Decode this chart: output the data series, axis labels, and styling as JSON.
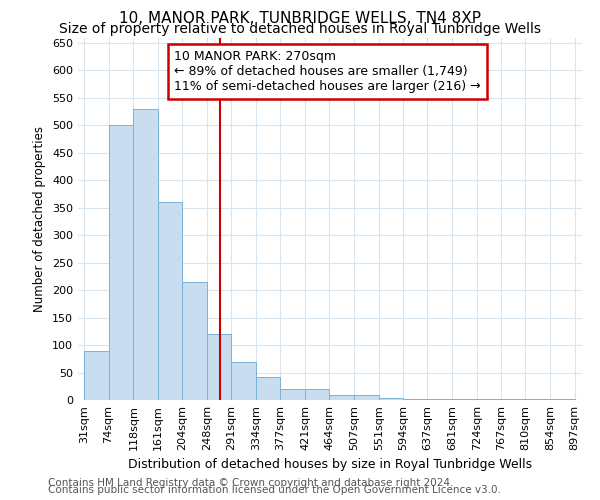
{
  "title": "10, MANOR PARK, TUNBRIDGE WELLS, TN4 8XP",
  "subtitle": "Size of property relative to detached houses in Royal Tunbridge Wells",
  "xlabel": "Distribution of detached houses by size in Royal Tunbridge Wells",
  "ylabel": "Number of detached properties",
  "annotation_line1": "10 MANOR PARK: 270sqm",
  "annotation_line2": "← 89% of detached houses are smaller (1,749)",
  "annotation_line3": "11% of semi-detached houses are larger (216) →",
  "footnote1": "Contains HM Land Registry data © Crown copyright and database right 2024.",
  "footnote2": "Contains public sector information licensed under the Open Government Licence v3.0.",
  "bar_left_edges": [
    31,
    74,
    118,
    161,
    204,
    248,
    291,
    334,
    377,
    421,
    464,
    507,
    551,
    594,
    637,
    681,
    724,
    767,
    810,
    854
  ],
  "bar_widths": [
    43,
    44,
    43,
    43,
    44,
    43,
    43,
    43,
    44,
    43,
    43,
    44,
    43,
    43,
    44,
    43,
    43,
    43,
    44,
    43
  ],
  "bar_heights": [
    90,
    500,
    530,
    360,
    215,
    120,
    70,
    42,
    20,
    20,
    10,
    10,
    3,
    1,
    1,
    1,
    1,
    1,
    1,
    1
  ],
  "x_tick_labels": [
    "31sqm",
    "74sqm",
    "118sqm",
    "161sqm",
    "204sqm",
    "248sqm",
    "291sqm",
    "334sqm",
    "377sqm",
    "421sqm",
    "464sqm",
    "507sqm",
    "551sqm",
    "594sqm",
    "637sqm",
    "681sqm",
    "724sqm",
    "767sqm",
    "810sqm",
    "854sqm",
    "897sqm"
  ],
  "x_tick_positions": [
    31,
    74,
    118,
    161,
    204,
    248,
    291,
    334,
    377,
    421,
    464,
    507,
    551,
    594,
    637,
    681,
    724,
    767,
    810,
    854,
    897
  ],
  "ylim": [
    0,
    660
  ],
  "xlim": [
    20,
    910
  ],
  "property_size": 270,
  "bar_facecolor": "#c8ddef",
  "bar_edgecolor": "#7ab3d4",
  "vline_color": "#cc0000",
  "annotation_box_edgecolor": "#cc0000",
  "background_color": "#ffffff",
  "plot_bg_color": "#ffffff",
  "grid_color": "#d8e4ee",
  "title_fontsize": 11,
  "subtitle_fontsize": 10,
  "ylabel_fontsize": 8.5,
  "xlabel_fontsize": 9,
  "tick_fontsize": 8,
  "annotation_fontsize": 9,
  "footnote_fontsize": 7.5
}
